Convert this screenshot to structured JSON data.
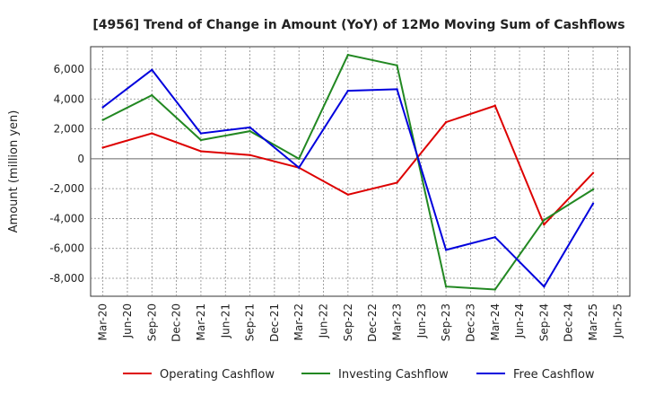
{
  "chart_data": {
    "type": "line",
    "title": "[4956]  Trend of Change in Amount (YoY) of 12Mo Moving Sum of Cashflows",
    "xlabel": "",
    "ylabel": "Amount (million yen)",
    "ylim": [
      -9200,
      7500
    ],
    "yticks": [
      6000,
      4000,
      2000,
      0,
      -2000,
      -4000,
      -6000,
      -8000
    ],
    "ytick_labels": [
      "6,000",
      "4,000",
      "2,000",
      "0",
      "-2,000",
      "-4,000",
      "-6,000",
      "-8,000"
    ],
    "categories": [
      "Mar-20",
      "Jun-20",
      "Sep-20",
      "Dec-20",
      "Mar-21",
      "Jun-21",
      "Sep-21",
      "Dec-21",
      "Mar-22",
      "Jun-22",
      "Sep-22",
      "Dec-22",
      "Mar-23",
      "Jun-23",
      "Sep-23",
      "Dec-23",
      "Mar-24",
      "Jun-24",
      "Sep-24",
      "Dec-24",
      "Mar-25",
      "Jun-25"
    ],
    "grid": true,
    "legend_position": "bottom",
    "series": [
      {
        "name": "Operating Cashflow",
        "color": "#dd0000",
        "values": [
          750,
          null,
          1700,
          null,
          500,
          null,
          250,
          null,
          -600,
          null,
          -2400,
          null,
          -1600,
          null,
          2450,
          null,
          3550,
          null,
          -4400,
          null,
          -950,
          null
        ]
      },
      {
        "name": "Investing Cashflow",
        "color": "#228822",
        "values": [
          2600,
          null,
          4250,
          null,
          1250,
          null,
          1850,
          null,
          0,
          null,
          6950,
          null,
          6250,
          null,
          -8550,
          null,
          -8750,
          null,
          -4100,
          null,
          -2050,
          null
        ]
      },
      {
        "name": "Free Cashflow",
        "color": "#0000dd",
        "values": [
          3450,
          null,
          5950,
          null,
          1700,
          null,
          2100,
          null,
          -600,
          null,
          4550,
          null,
          4650,
          null,
          -6100,
          null,
          -5250,
          null,
          -8550,
          null,
          -3000,
          null
        ]
      }
    ]
  }
}
